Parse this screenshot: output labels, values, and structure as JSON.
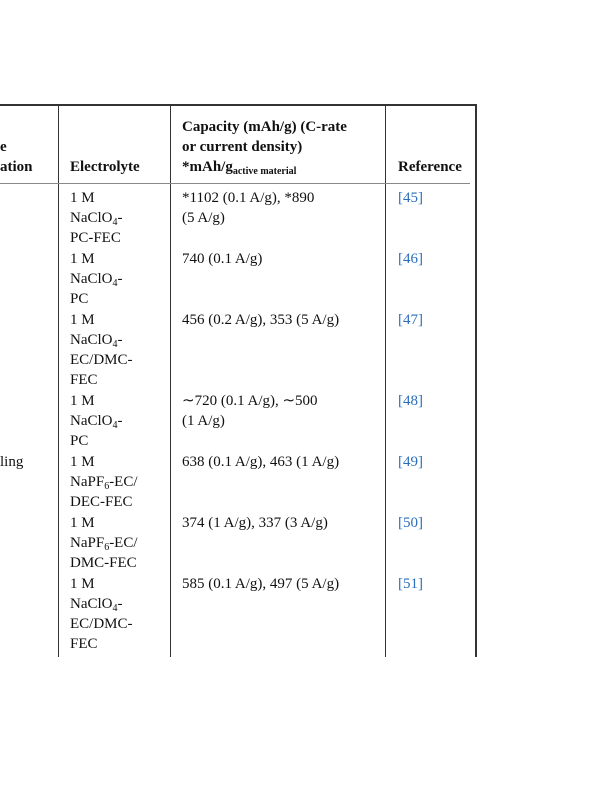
{
  "table": {
    "header": {
      "first": [
        "e",
        "ation"
      ],
      "electrolyte": "Electrolyte",
      "capacity": [
        "Capacity (mAh/g) (C-rate",
        "or current density)",
        {
          "base": "*mAh/g",
          "sub": "active material"
        }
      ],
      "reference": "Reference"
    },
    "rows": [
      {
        "electrolyte": [
          "1 M",
          {
            "base": "NaClO",
            "sub": "4",
            "tail": "-"
          },
          "PC-FEC"
        ],
        "capacity": [
          "*1102 (0.1 A/g), *890",
          "(5 A/g)"
        ],
        "reference": "[45]"
      },
      {
        "electrolyte": [
          "1 M",
          {
            "base": "NaClO",
            "sub": "4",
            "tail": "-"
          },
          "PC"
        ],
        "capacity": [
          "740 (0.1 A/g)"
        ],
        "reference": "[46]"
      },
      {
        "electrolyte": [
          "1 M",
          {
            "base": "NaClO",
            "sub": "4",
            "tail": "-"
          },
          "EC/DMC-",
          "FEC"
        ],
        "capacity": [
          "456 (0.2 A/g), 353 (5 A/g)"
        ],
        "reference": "[47]"
      },
      {
        "electrolyte": [
          "1 M",
          {
            "base": "NaClO",
            "sub": "4",
            "tail": "-"
          },
          "PC"
        ],
        "capacity": [
          "∼720 (0.1 A/g), ∼500",
          "(1 A/g)"
        ],
        "reference": "[48]"
      },
      {
        "first": "ling",
        "electrolyte": [
          "1 M",
          {
            "base": "NaPF",
            "sub": "6",
            "tail": "-EC/"
          },
          "DEC-FEC"
        ],
        "capacity": [
          "638 (0.1 A/g), 463 (1 A/g)"
        ],
        "reference": "[49]"
      },
      {
        "electrolyte": [
          "1 M",
          {
            "base": "NaPF",
            "sub": "6",
            "tail": "-EC/"
          },
          "DMC-FEC"
        ],
        "capacity": [
          "374 (1 A/g), 337 (3 A/g)"
        ],
        "reference": "[50]"
      },
      {
        "electrolyte": [
          "1 M",
          {
            "base": "NaClO",
            "sub": "4",
            "tail": "-"
          },
          "EC/DMC-",
          "FEC"
        ],
        "capacity": [
          "585 (0.1 A/g), 497 (5 A/g)"
        ],
        "reference": "[51]"
      }
    ]
  }
}
